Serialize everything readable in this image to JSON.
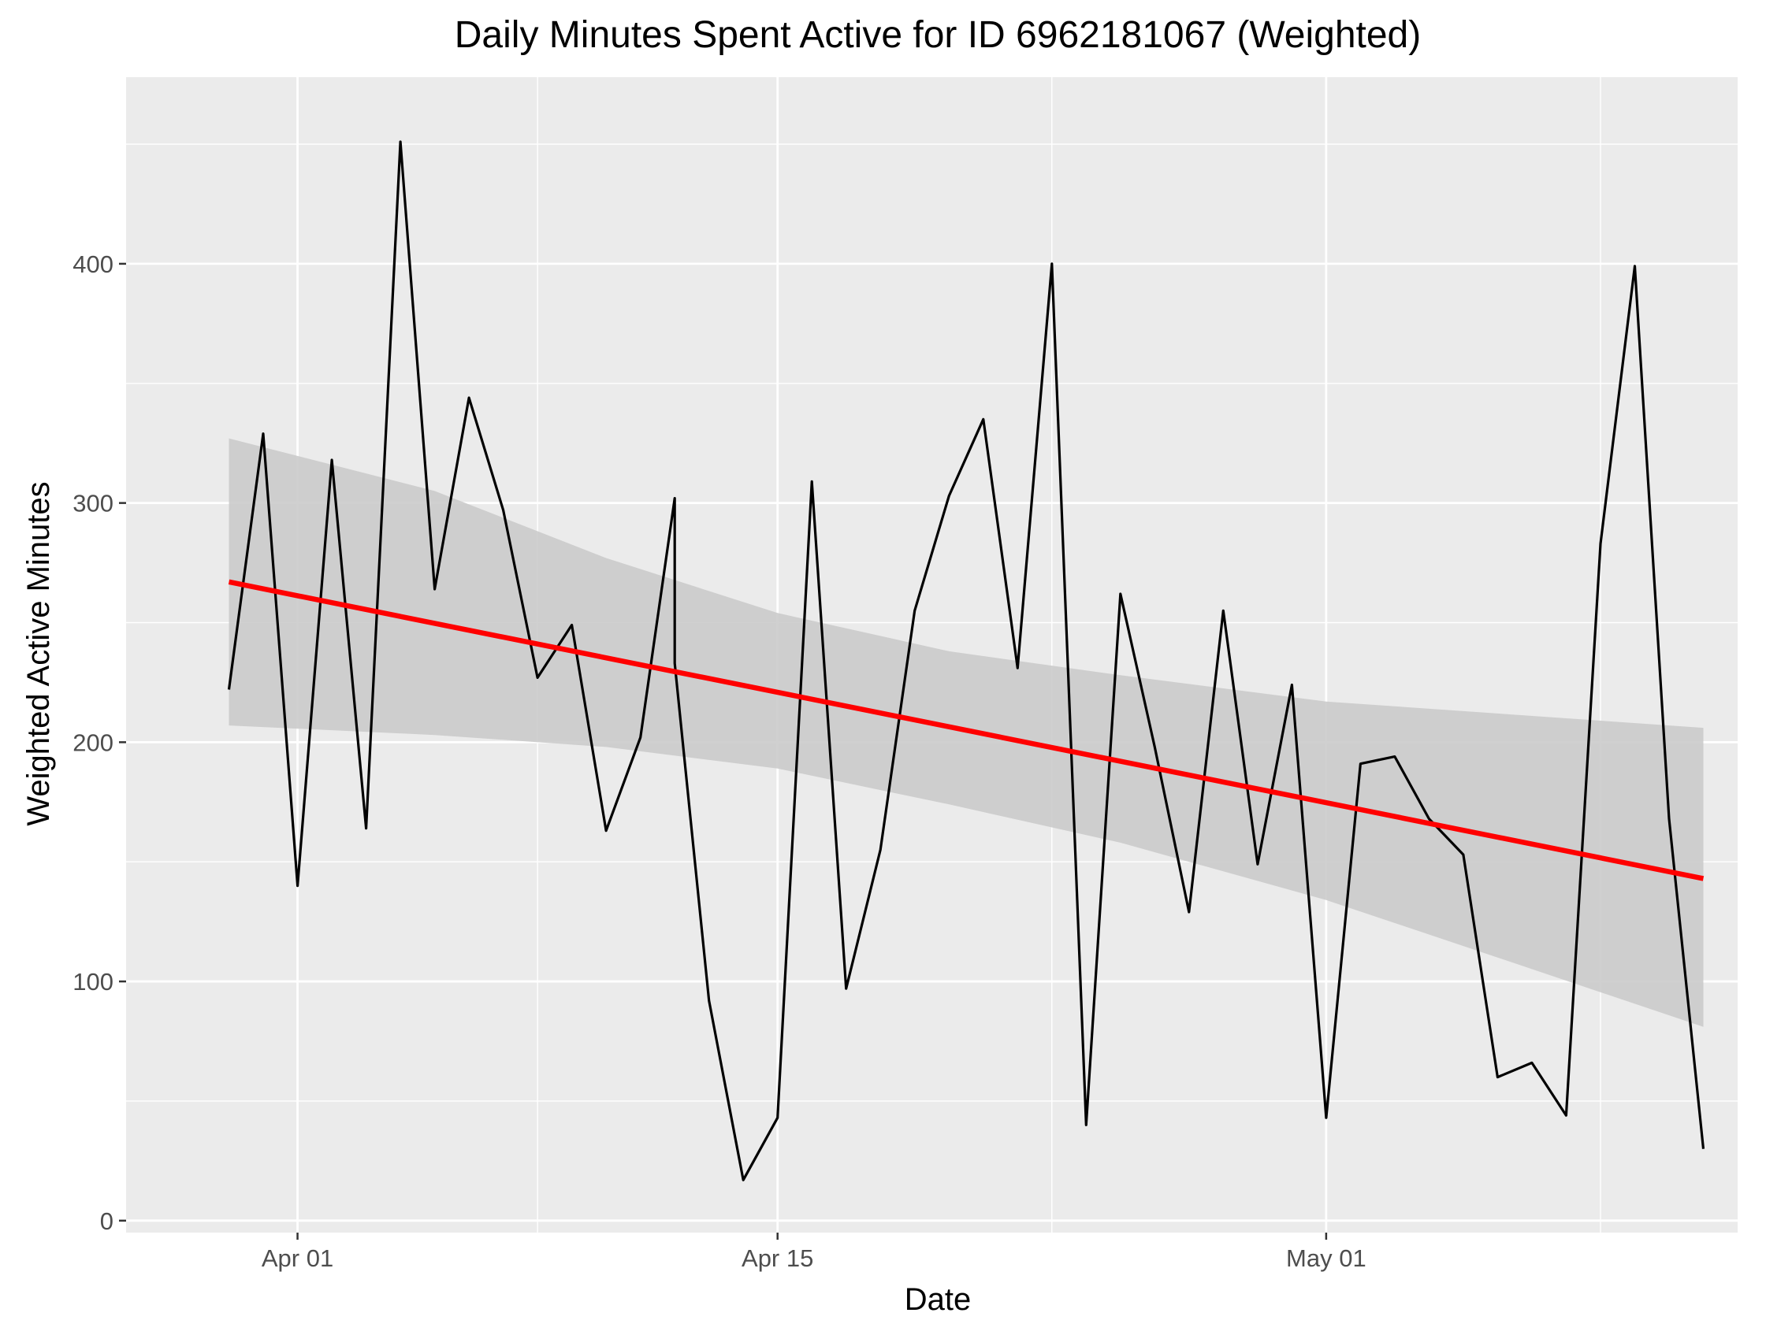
{
  "chart_data": {
    "type": "line",
    "title": "Daily Minutes Spent Active for ID 6962181067 (Weighted)",
    "xlabel": "Date",
    "ylabel": "Weighted Active Minutes",
    "x_ticks": [
      {
        "date": "2016-04-01",
        "label": "Apr 01"
      },
      {
        "date": "2016-04-15",
        "label": "Apr 15"
      },
      {
        "date": "2016-05-01",
        "label": "May 01"
      }
    ],
    "y_ticks": [
      0,
      100,
      200,
      300,
      400
    ],
    "xlim": [
      "2016-03-27",
      "2016-05-13"
    ],
    "ylim": [
      -5,
      478
    ],
    "grid": true,
    "series": [
      {
        "color": "#000000",
        "x": [
          "2016-03-30",
          "2016-03-31",
          "2016-04-01",
          "2016-04-02",
          "2016-04-03",
          "2016-04-04",
          "2016-04-05",
          "2016-04-06",
          "2016-04-07",
          "2016-04-08",
          "2016-04-09",
          "2016-04-10",
          "2016-04-11",
          "2016-04-12",
          "2016-04-12",
          "2016-04-13",
          "2016-04-14",
          "2016-04-15",
          "2016-04-16",
          "2016-04-17",
          "2016-04-18",
          "2016-04-19",
          "2016-04-20",
          "2016-04-21",
          "2016-04-22",
          "2016-04-23",
          "2016-04-24",
          "2016-04-25",
          "2016-04-26",
          "2016-04-27",
          "2016-04-28",
          "2016-04-29",
          "2016-04-30",
          "2016-05-01",
          "2016-05-02",
          "2016-05-03",
          "2016-05-04",
          "2016-05-05",
          "2016-05-06",
          "2016-05-07",
          "2016-05-08",
          "2016-05-09",
          "2016-05-10",
          "2016-05-11",
          "2016-05-12"
        ],
        "y": [
          222,
          329,
          140,
          318,
          164,
          451,
          264,
          344,
          297,
          227,
          249,
          163,
          202,
          302,
          233,
          92,
          17,
          43,
          309,
          97,
          155,
          255,
          303,
          335,
          231,
          400,
          40,
          262,
          198,
          129,
          255,
          149,
          224,
          43,
          191,
          194,
          168,
          153,
          60,
          66,
          44,
          283,
          399,
          168,
          30
        ]
      }
    ],
    "trend": {
      "color": "#ff0000",
      "x": [
        "2016-03-30",
        "2016-05-12"
      ],
      "y": [
        267,
        143
      ],
      "band": {
        "color": "#cbcbcb",
        "x": [
          "2016-03-30",
          "2016-04-05",
          "2016-04-10",
          "2016-04-15",
          "2016-04-20",
          "2016-04-25",
          "2016-05-01",
          "2016-05-06",
          "2016-05-12"
        ],
        "upper": [
          327,
          305,
          277,
          254,
          238,
          228,
          217,
          212,
          206
        ],
        "lower": [
          207,
          203,
          198,
          189,
          174,
          158,
          134,
          110,
          81
        ]
      }
    },
    "colors": {
      "panel": "#ebebeb",
      "grid": "#ffffff",
      "axis_ticks": "#333333"
    }
  }
}
